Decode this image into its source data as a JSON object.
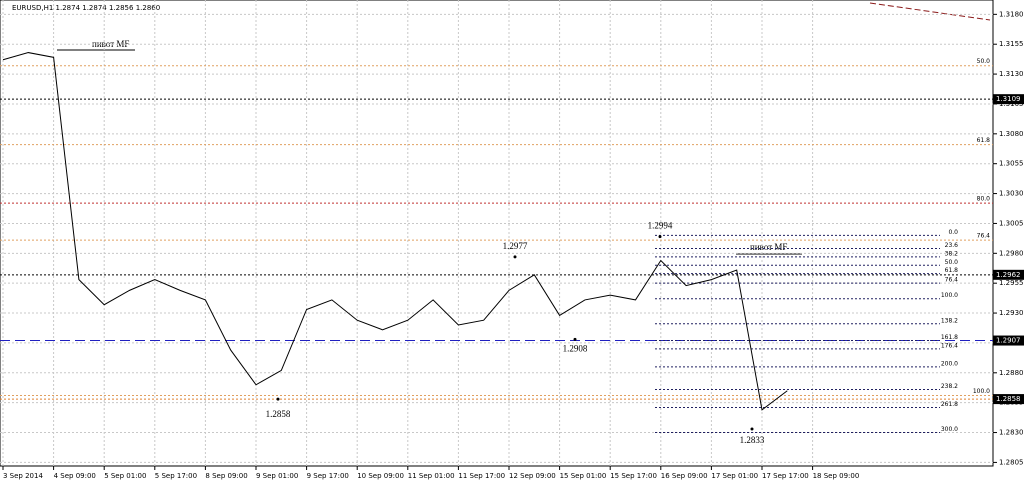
{
  "chart_data": {
    "type": "line",
    "title": "EURUSD,H1 1.2874 1.2874 1.2856 1.2860",
    "categories": [
      "3 Sep 2014",
      null,
      "4 Sep 09:00",
      null,
      "5 Sep 01:00",
      null,
      "5 Sep 17:00",
      null,
      "8 Sep 09:00",
      null,
      "9 Sep 01:00",
      null,
      "9 Sep 17:00",
      null,
      "10 Sep 09:00",
      null,
      "11 Sep 01:00",
      null,
      "11 Sep 17:00",
      null,
      "12 Sep 09:00",
      null,
      "15 Sep 01:00",
      null,
      "15 Sep 17:00",
      null,
      "16 Sep 09:00",
      null,
      "17 Sep 01:00",
      null,
      "17 Sep 17:00",
      null,
      "18 Sep 09:00",
      null
    ],
    "series": [
      {
        "color": "#000000",
        "values": [
          1.3142,
          1.3148,
          1.3144,
          1.2958,
          1.2937,
          1.2949,
          1.2958,
          1.2949,
          1.2941,
          1.2899,
          1.287,
          1.2882,
          1.2933,
          1.2941,
          1.2924,
          1.2916,
          1.2924,
          1.2941,
          1.292,
          1.2924,
          1.2949,
          1.2962,
          1.2928,
          1.2941,
          1.2945,
          1.2941,
          1.2974,
          1.2953,
          1.2958,
          1.2966,
          1.2849,
          1.2865,
          null,
          null
        ]
      }
    ],
    "ylim": [
      1.2802,
      1.3192
    ],
    "yticks": [
      {
        "value": 1.318,
        "label": "1.3180"
      },
      1.3155,
      {
        "value": 1.313,
        "label": "1.3130"
      },
      1.3105,
      {
        "value": 1.308,
        "label": "1.3080"
      },
      1.3055,
      {
        "value": 1.303,
        "label": "1.3030"
      },
      1.3005,
      {
        "value": 1.298,
        "label": "1.2980"
      },
      1.2955,
      {
        "value": 1.293,
        "label": "1.2930"
      },
      1.2905,
      {
        "value": 1.288,
        "label": "1.2880"
      },
      1.2855,
      {
        "value": 1.283,
        "label": "1.2830"
      },
      1.2805
    ],
    "grid": true,
    "levels": [
      {
        "value": 1.3109,
        "color": "#000000"
      },
      {
        "value": 1.2962,
        "color": "#000000"
      },
      {
        "value": 1.2907,
        "color": "#2020c0"
      },
      {
        "value": 1.2858,
        "color": "#e08030"
      }
    ],
    "fib_right": [
      {
        "value": 1.2995,
        "label": "0.0"
      },
      {
        "value": 1.2984,
        "label": "23.6"
      },
      {
        "value": 1.2977,
        "label": "38.2"
      },
      {
        "value": 1.297,
        "label": "50.0"
      },
      {
        "value": 1.2963,
        "label": "61.8"
      },
      {
        "value": 1.2955,
        "label": "76.4"
      },
      {
        "value": 1.2942,
        "label": "100.0"
      },
      {
        "value": 1.2921,
        "label": "138.2"
      },
      {
        "value": 1.2907,
        "label": "161.8"
      },
      {
        "value": 1.29,
        "label": "176.4"
      },
      {
        "value": 1.2885,
        "label": "200.0"
      },
      {
        "value": 1.2866,
        "label": "238.2"
      },
      {
        "value": 1.2851,
        "label": "261.8"
      },
      {
        "value": 1.283,
        "label": "300.0"
      }
    ],
    "fib_left": [
      {
        "value": 1.3137,
        "label": "50.0"
      },
      {
        "value": 1.3071,
        "label": "61.8"
      },
      {
        "value": 1.3022,
        "label": "80.0"
      },
      {
        "value": 1.2991,
        "label": "76.4"
      },
      {
        "value": 1.2861,
        "label": "100.0"
      }
    ],
    "pivots": [
      1.2977,
      1.2994,
      1.2908,
      1.2858,
      1.2833
    ],
    "annotations": [
      "пивот MF",
      "пивот MF"
    ]
  }
}
